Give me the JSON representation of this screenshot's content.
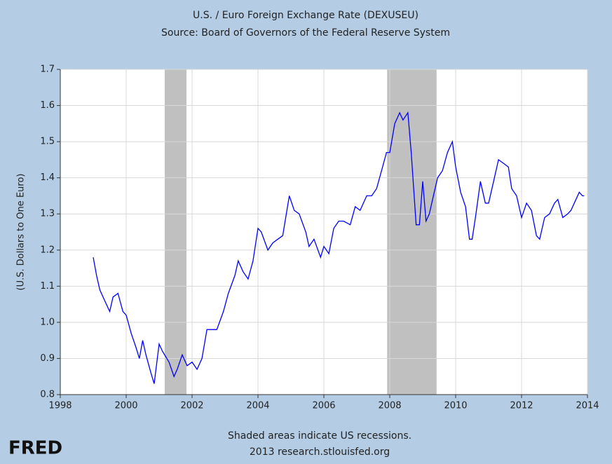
{
  "chart_data": {
    "type": "line",
    "title": "U.S. / Euro Foreign Exchange Rate (DEXUSEU)",
    "subtitle": "Source: Board of Governors of the Federal Reserve System",
    "y_label": "(U.S. Dollars to One Euro)",
    "notes": [
      "Shaded areas indicate US recessions.",
      "2013 research.stlouisfed.org"
    ],
    "logo": "FRED",
    "recessions": [
      [
        2001.17,
        2001.83
      ],
      [
        2007.92,
        2009.42
      ]
    ],
    "xlim": [
      1998,
      2014
    ],
    "xticks": [
      1998,
      2000,
      2002,
      2004,
      2006,
      2008,
      2010,
      2012,
      2014
    ],
    "ylim": [
      0.8,
      1.7
    ],
    "yticks": [
      0.8,
      0.9,
      {
        "value": 1,
        "label": "1.0"
      },
      1.1,
      1.2,
      1.3,
      1.4,
      1.5,
      1.6,
      1.7
    ],
    "grid": true,
    "series": [
      {
        "name": "DEXUSEU",
        "color": "#0000ff",
        "x": [
          1999.0,
          1999.1,
          1999.2,
          1999.35,
          1999.5,
          1999.6,
          1999.75,
          1999.9,
          2000.0,
          2000.15,
          2000.3,
          2000.4,
          2000.5,
          2000.6,
          2000.75,
          2000.85,
          2001.0,
          2001.1,
          2001.3,
          2001.45,
          2001.55,
          2001.7,
          2001.85,
          2002.0,
          2002.15,
          2002.3,
          2002.45,
          2002.6,
          2002.75,
          2002.95,
          2003.1,
          2003.3,
          2003.4,
          2003.55,
          2003.7,
          2003.85,
          2004.0,
          2004.1,
          2004.3,
          2004.45,
          2004.6,
          2004.75,
          2004.95,
          2005.1,
          2005.25,
          2005.45,
          2005.55,
          2005.7,
          2005.9,
          2006.0,
          2006.15,
          2006.3,
          2006.45,
          2006.6,
          2006.8,
          2006.95,
          2007.1,
          2007.3,
          2007.45,
          2007.6,
          2007.75,
          2007.9,
          2008.0,
          2008.15,
          2008.3,
          2008.4,
          2008.55,
          2008.65,
          2008.8,
          2008.9,
          2009.0,
          2009.1,
          2009.2,
          2009.35,
          2009.45,
          2009.6,
          2009.75,
          2009.9,
          2010.0,
          2010.15,
          2010.3,
          2010.42,
          2010.5,
          2010.6,
          2010.75,
          2010.9,
          2011.0,
          2011.15,
          2011.3,
          2011.45,
          2011.6,
          2011.7,
          2011.85,
          2012.0,
          2012.15,
          2012.3,
          2012.45,
          2012.55,
          2012.7,
          2012.85,
          2013.0,
          2013.1,
          2013.25,
          2013.4,
          2013.5,
          2013.6,
          2013.75,
          2013.85,
          2013.9
        ],
        "values": [
          1.18,
          1.13,
          1.09,
          1.06,
          1.03,
          1.07,
          1.08,
          1.03,
          1.02,
          0.97,
          0.93,
          0.9,
          0.95,
          0.91,
          0.86,
          0.83,
          0.94,
          0.92,
          0.89,
          0.85,
          0.87,
          0.91,
          0.88,
          0.89,
          0.87,
          0.9,
          0.98,
          0.98,
          0.98,
          1.03,
          1.08,
          1.13,
          1.17,
          1.14,
          1.12,
          1.17,
          1.26,
          1.25,
          1.2,
          1.22,
          1.23,
          1.24,
          1.35,
          1.31,
          1.3,
          1.25,
          1.21,
          1.23,
          1.18,
          1.21,
          1.19,
          1.26,
          1.28,
          1.28,
          1.27,
          1.32,
          1.31,
          1.35,
          1.35,
          1.37,
          1.42,
          1.47,
          1.47,
          1.55,
          1.58,
          1.56,
          1.58,
          1.47,
          1.27,
          1.27,
          1.39,
          1.28,
          1.3,
          1.36,
          1.4,
          1.42,
          1.47,
          1.5,
          1.43,
          1.36,
          1.32,
          1.23,
          1.23,
          1.29,
          1.39,
          1.33,
          1.33,
          1.39,
          1.45,
          1.44,
          1.43,
          1.37,
          1.35,
          1.29,
          1.33,
          1.31,
          1.24,
          1.23,
          1.29,
          1.3,
          1.33,
          1.34,
          1.29,
          1.3,
          1.31,
          1.33,
          1.36,
          1.35,
          1.35
        ]
      }
    ]
  }
}
